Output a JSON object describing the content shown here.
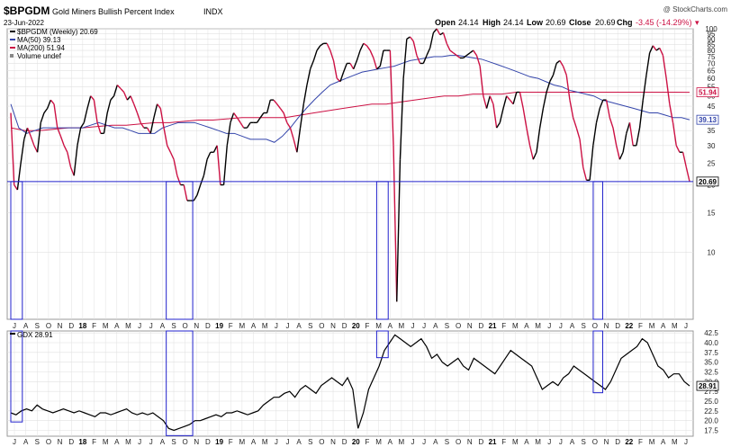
{
  "header": {
    "symbol": "$BPGDM",
    "name": "Gold Miners Bullish Percent Index",
    "exchange": "INDX",
    "date": "23-Jun-2022",
    "brand": "@ StockCharts.com",
    "ohlc": {
      "open_label": "Open",
      "open": "24.14",
      "high_label": "High",
      "high": "24.14",
      "low_label": "Low",
      "low": "20.69",
      "close_label": "Close",
      "close": "20.69",
      "chg_label": "Chg",
      "chg": "-3.45 (-14.29%)",
      "chg_arrow": "▾"
    }
  },
  "legend": {
    "main": "$BPGDM (Weekly) 20.69",
    "ma50": "MA(50) 39.13",
    "ma200": "MA(200) 51.94",
    "volume": "Volume undef",
    "gdx": "GDX 28.91"
  },
  "colors": {
    "up": "#000000",
    "down": "#cc1144",
    "ma50": "#3344aa",
    "ma200": "#cc1144",
    "box": "#2222cc",
    "grid": "#e0e0e0",
    "gdx": "#000000"
  },
  "chart_data": [
    {
      "type": "line",
      "title": "$BPGDM Gold Miners Bullish Percent Index INDX",
      "ylim": [
        5,
        100
      ],
      "yscale": "log",
      "ytick_labels": [
        "100",
        "95",
        "90",
        "85",
        "80",
        "75",
        "70",
        "65",
        "60",
        "55",
        "50",
        "45",
        "40",
        "35",
        "30",
        "25",
        "20",
        "15",
        "10"
      ],
      "value_tags": [
        "51.94",
        "39.13",
        "20.69"
      ],
      "x_start": "2017-07",
      "x_end": "2022-06",
      "series": [
        {
          "name": "$BPGDM (Weekly)",
          "values": [
            42,
            20,
            19,
            25,
            32,
            36,
            33,
            30,
            28,
            38,
            42,
            44,
            48,
            46,
            36,
            33,
            30,
            28,
            24,
            22,
            30,
            36,
            38,
            44,
            50,
            48,
            38,
            34,
            34,
            42,
            48,
            50,
            56,
            54,
            52,
            48,
            50,
            46,
            42,
            38,
            36,
            36,
            34,
            40,
            46,
            44,
            36,
            30,
            28,
            26,
            22,
            20,
            20,
            17,
            17,
            17,
            18,
            20,
            22,
            26,
            28,
            28,
            30,
            20,
            20,
            30,
            38,
            42,
            40,
            38,
            36,
            36,
            38,
            38,
            38,
            40,
            42,
            42,
            48,
            48,
            46,
            44,
            42,
            38,
            36,
            32,
            28,
            36,
            46,
            56,
            66,
            72,
            80,
            84,
            86,
            86,
            80,
            72,
            60,
            58,
            64,
            70,
            70,
            66,
            72,
            80,
            86,
            84,
            80,
            74,
            66,
            68,
            80,
            80,
            80,
            30,
            6,
            26,
            60,
            90,
            92,
            88,
            76,
            70,
            70,
            76,
            82,
            96,
            100,
            94,
            96,
            86,
            80,
            78,
            76,
            74,
            74,
            76,
            78,
            80,
            76,
            68,
            50,
            44,
            50,
            46,
            36,
            38,
            44,
            50,
            48,
            46,
            52,
            52,
            44,
            36,
            30,
            26,
            28,
            36,
            44,
            52,
            58,
            62,
            70,
            72,
            68,
            62,
            48,
            40,
            36,
            32,
            24,
            21,
            21,
            30,
            38,
            44,
            48,
            48,
            40,
            36,
            30,
            26,
            28,
            34,
            38,
            30,
            30,
            36,
            48,
            62,
            78,
            84,
            80,
            82,
            76,
            60,
            46,
            38,
            30,
            28,
            28,
            24,
            20.69
          ]
        },
        {
          "name": "MA(50)",
          "values": [
            46,
            36,
            34,
            35,
            36,
            36,
            36,
            36,
            36,
            36,
            37,
            38,
            37,
            36,
            36,
            35,
            34,
            34,
            34,
            36,
            37,
            38,
            38,
            38,
            37,
            36,
            35,
            34,
            34,
            33,
            32,
            32,
            32,
            31,
            33,
            36,
            40,
            44,
            48,
            52,
            56,
            58,
            60,
            62,
            64,
            65,
            66,
            67,
            68,
            70,
            72,
            73,
            74,
            75,
            75,
            76,
            76,
            75,
            74,
            73,
            71,
            69,
            67,
            65,
            63,
            61,
            60,
            58,
            56,
            55,
            53,
            52,
            51,
            50,
            48,
            47,
            46,
            45,
            44,
            43,
            42,
            42,
            41,
            40,
            40,
            39.13
          ]
        },
        {
          "name": "MA(200)",
          "values": [
            36,
            35,
            35,
            35.5,
            36,
            36,
            36.5,
            37,
            37,
            37.5,
            38,
            38,
            38.5,
            39,
            39,
            39.5,
            40,
            40,
            40,
            40,
            41,
            42,
            43,
            44,
            45,
            46,
            46,
            47,
            48,
            49,
            50,
            50,
            51,
            51,
            51,
            52,
            52,
            52,
            52,
            52,
            52,
            52,
            52,
            52,
            52,
            52,
            52,
            51.94
          ]
        }
      ]
    },
    {
      "type": "line",
      "title": "GDX",
      "ylim": [
        16,
        43
      ],
      "ytick_labels": [
        "42.5",
        "40.0",
        "37.5",
        "35.0",
        "32.5",
        "30.0",
        "27.5",
        "25.0",
        "22.5",
        "20.0",
        "17.5"
      ],
      "value_tags": [
        "28.91"
      ],
      "series": [
        {
          "name": "GDX",
          "values": [
            22,
            21.5,
            22.5,
            23,
            22.5,
            24,
            23,
            22.5,
            22,
            22.5,
            23,
            22.5,
            22,
            22.5,
            22,
            21.5,
            21,
            22,
            22,
            21.5,
            22,
            22.5,
            23,
            22,
            21.5,
            22,
            21.5,
            22,
            21,
            20,
            18,
            17.5,
            18,
            18.5,
            19,
            20,
            20,
            20.5,
            21,
            21.5,
            21,
            22,
            22,
            22.5,
            22,
            21.5,
            22,
            22.5,
            24,
            25,
            26,
            26,
            27,
            27.5,
            26,
            28,
            29,
            28,
            27,
            29,
            30,
            31,
            30,
            29,
            31,
            28,
            18,
            22,
            28,
            31,
            34,
            38,
            40,
            42,
            41,
            40,
            39,
            40,
            41,
            39,
            36,
            37,
            35,
            34,
            35,
            36,
            34,
            33,
            36,
            35,
            34,
            33,
            32,
            34,
            36,
            38,
            37,
            36,
            35,
            34,
            31,
            28,
            29,
            30,
            29,
            31,
            32,
            34,
            33,
            32,
            31,
            30,
            29,
            28,
            30,
            33,
            36,
            37,
            38,
            39,
            41,
            40,
            37,
            34,
            33,
            31,
            32,
            32,
            30,
            28.91
          ]
        }
      ]
    }
  ],
  "x_axis": {
    "labels": [
      "J",
      "A",
      "S",
      "O",
      "N",
      "D",
      "18",
      "F",
      "M",
      "A",
      "M",
      "J",
      "J",
      "A",
      "S",
      "O",
      "N",
      "D",
      "19",
      "F",
      "M",
      "A",
      "M",
      "J",
      "J",
      "A",
      "S",
      "O",
      "N",
      "D",
      "20",
      "F",
      "M",
      "A",
      "M",
      "J",
      "J",
      "A",
      "S",
      "O",
      "N",
      "D",
      "21",
      "F",
      "M",
      "A",
      "M",
      "J",
      "J",
      "A",
      "S",
      "O",
      "N",
      "D",
      "22",
      "F",
      "M",
      "A",
      "M",
      "J"
    ]
  }
}
